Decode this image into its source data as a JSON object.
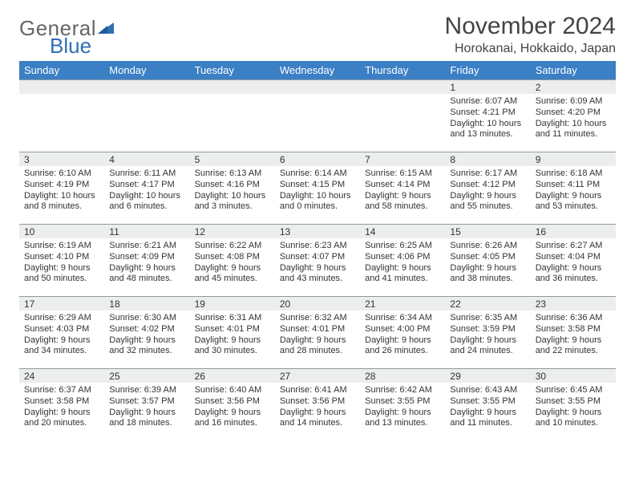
{
  "brand": {
    "general": "General",
    "blue": "Blue",
    "icon_color": "#2f6fb5"
  },
  "title": "November 2024",
  "location": "Horokanai, Hokkaido, Japan",
  "colors": {
    "header_bg": "#3b7fc4",
    "header_fg": "#ffffff",
    "daybar_bg": "#eceded",
    "daybar_border": "#8f99a3",
    "text": "#333333",
    "background": "#ffffff"
  },
  "day_labels": [
    "Sunday",
    "Monday",
    "Tuesday",
    "Wednesday",
    "Thursday",
    "Friday",
    "Saturday"
  ],
  "weeks": [
    [
      {
        "n": "",
        "sr": "",
        "ss": "",
        "dl": ""
      },
      {
        "n": "",
        "sr": "",
        "ss": "",
        "dl": ""
      },
      {
        "n": "",
        "sr": "",
        "ss": "",
        "dl": ""
      },
      {
        "n": "",
        "sr": "",
        "ss": "",
        "dl": ""
      },
      {
        "n": "",
        "sr": "",
        "ss": "",
        "dl": ""
      },
      {
        "n": "1",
        "sr": "Sunrise: 6:07 AM",
        "ss": "Sunset: 4:21 PM",
        "dl": "Daylight: 10 hours and 13 minutes."
      },
      {
        "n": "2",
        "sr": "Sunrise: 6:09 AM",
        "ss": "Sunset: 4:20 PM",
        "dl": "Daylight: 10 hours and 11 minutes."
      }
    ],
    [
      {
        "n": "3",
        "sr": "Sunrise: 6:10 AM",
        "ss": "Sunset: 4:19 PM",
        "dl": "Daylight: 10 hours and 8 minutes."
      },
      {
        "n": "4",
        "sr": "Sunrise: 6:11 AM",
        "ss": "Sunset: 4:17 PM",
        "dl": "Daylight: 10 hours and 6 minutes."
      },
      {
        "n": "5",
        "sr": "Sunrise: 6:13 AM",
        "ss": "Sunset: 4:16 PM",
        "dl": "Daylight: 10 hours and 3 minutes."
      },
      {
        "n": "6",
        "sr": "Sunrise: 6:14 AM",
        "ss": "Sunset: 4:15 PM",
        "dl": "Daylight: 10 hours and 0 minutes."
      },
      {
        "n": "7",
        "sr": "Sunrise: 6:15 AM",
        "ss": "Sunset: 4:14 PM",
        "dl": "Daylight: 9 hours and 58 minutes."
      },
      {
        "n": "8",
        "sr": "Sunrise: 6:17 AM",
        "ss": "Sunset: 4:12 PM",
        "dl": "Daylight: 9 hours and 55 minutes."
      },
      {
        "n": "9",
        "sr": "Sunrise: 6:18 AM",
        "ss": "Sunset: 4:11 PM",
        "dl": "Daylight: 9 hours and 53 minutes."
      }
    ],
    [
      {
        "n": "10",
        "sr": "Sunrise: 6:19 AM",
        "ss": "Sunset: 4:10 PM",
        "dl": "Daylight: 9 hours and 50 minutes."
      },
      {
        "n": "11",
        "sr": "Sunrise: 6:21 AM",
        "ss": "Sunset: 4:09 PM",
        "dl": "Daylight: 9 hours and 48 minutes."
      },
      {
        "n": "12",
        "sr": "Sunrise: 6:22 AM",
        "ss": "Sunset: 4:08 PM",
        "dl": "Daylight: 9 hours and 45 minutes."
      },
      {
        "n": "13",
        "sr": "Sunrise: 6:23 AM",
        "ss": "Sunset: 4:07 PM",
        "dl": "Daylight: 9 hours and 43 minutes."
      },
      {
        "n": "14",
        "sr": "Sunrise: 6:25 AM",
        "ss": "Sunset: 4:06 PM",
        "dl": "Daylight: 9 hours and 41 minutes."
      },
      {
        "n": "15",
        "sr": "Sunrise: 6:26 AM",
        "ss": "Sunset: 4:05 PM",
        "dl": "Daylight: 9 hours and 38 minutes."
      },
      {
        "n": "16",
        "sr": "Sunrise: 6:27 AM",
        "ss": "Sunset: 4:04 PM",
        "dl": "Daylight: 9 hours and 36 minutes."
      }
    ],
    [
      {
        "n": "17",
        "sr": "Sunrise: 6:29 AM",
        "ss": "Sunset: 4:03 PM",
        "dl": "Daylight: 9 hours and 34 minutes."
      },
      {
        "n": "18",
        "sr": "Sunrise: 6:30 AM",
        "ss": "Sunset: 4:02 PM",
        "dl": "Daylight: 9 hours and 32 minutes."
      },
      {
        "n": "19",
        "sr": "Sunrise: 6:31 AM",
        "ss": "Sunset: 4:01 PM",
        "dl": "Daylight: 9 hours and 30 minutes."
      },
      {
        "n": "20",
        "sr": "Sunrise: 6:32 AM",
        "ss": "Sunset: 4:01 PM",
        "dl": "Daylight: 9 hours and 28 minutes."
      },
      {
        "n": "21",
        "sr": "Sunrise: 6:34 AM",
        "ss": "Sunset: 4:00 PM",
        "dl": "Daylight: 9 hours and 26 minutes."
      },
      {
        "n": "22",
        "sr": "Sunrise: 6:35 AM",
        "ss": "Sunset: 3:59 PM",
        "dl": "Daylight: 9 hours and 24 minutes."
      },
      {
        "n": "23",
        "sr": "Sunrise: 6:36 AM",
        "ss": "Sunset: 3:58 PM",
        "dl": "Daylight: 9 hours and 22 minutes."
      }
    ],
    [
      {
        "n": "24",
        "sr": "Sunrise: 6:37 AM",
        "ss": "Sunset: 3:58 PM",
        "dl": "Daylight: 9 hours and 20 minutes."
      },
      {
        "n": "25",
        "sr": "Sunrise: 6:39 AM",
        "ss": "Sunset: 3:57 PM",
        "dl": "Daylight: 9 hours and 18 minutes."
      },
      {
        "n": "26",
        "sr": "Sunrise: 6:40 AM",
        "ss": "Sunset: 3:56 PM",
        "dl": "Daylight: 9 hours and 16 minutes."
      },
      {
        "n": "27",
        "sr": "Sunrise: 6:41 AM",
        "ss": "Sunset: 3:56 PM",
        "dl": "Daylight: 9 hours and 14 minutes."
      },
      {
        "n": "28",
        "sr": "Sunrise: 6:42 AM",
        "ss": "Sunset: 3:55 PM",
        "dl": "Daylight: 9 hours and 13 minutes."
      },
      {
        "n": "29",
        "sr": "Sunrise: 6:43 AM",
        "ss": "Sunset: 3:55 PM",
        "dl": "Daylight: 9 hours and 11 minutes."
      },
      {
        "n": "30",
        "sr": "Sunrise: 6:45 AM",
        "ss": "Sunset: 3:55 PM",
        "dl": "Daylight: 9 hours and 10 minutes."
      }
    ]
  ]
}
